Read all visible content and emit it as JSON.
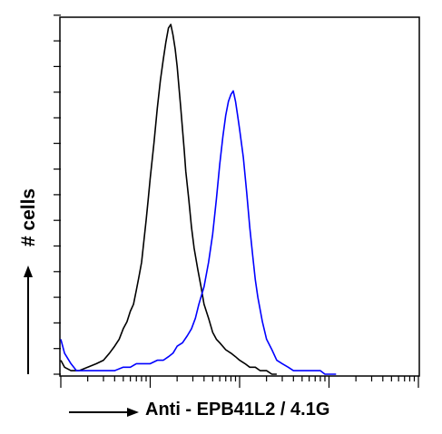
{
  "chart_data": {
    "type": "line",
    "title": "",
    "xlabel": "Anti - EPB41L2 / 4.1G",
    "ylabel": "# cells",
    "x_scale": "log",
    "xlim": [
      1,
      10000
    ],
    "ylim": [
      0,
      100
    ],
    "grid": false,
    "legend": "none",
    "series": [
      {
        "color": "#000000",
        "x": [
          1.0,
          1.1,
          1.3,
          1.6,
          2.0,
          2.5,
          3.0,
          3.5,
          4.0,
          4.5,
          5.0,
          5.5,
          6.0,
          6.5,
          7.0,
          7.5,
          8.0,
          8.5,
          9.0,
          9.5,
          10.0,
          11.0,
          12.0,
          13.0,
          14.0,
          15.0,
          16.0,
          17.0,
          18.0,
          19.0,
          20.0,
          21.0,
          22.0,
          23.0,
          24.0,
          25.0,
          27.0,
          29.0,
          31.0,
          34.0,
          37.0,
          40.0,
          45.0,
          50.0,
          55.0,
          60.0,
          70.0,
          80.0,
          90.0,
          100.0,
          115.0,
          130.0,
          150.0,
          170.0,
          200.0,
          230.0,
          260.0
        ],
        "y": [
          4,
          2,
          1,
          1,
          2,
          3,
          4,
          6,
          8,
          10,
          13,
          15,
          18,
          20,
          24,
          28,
          32,
          38,
          44,
          50,
          56,
          66,
          76,
          84,
          90,
          95,
          99,
          100,
          97,
          93,
          88,
          82,
          76,
          70,
          64,
          58,
          50,
          42,
          36,
          30,
          25,
          20,
          16,
          12,
          10,
          9,
          7,
          6,
          5,
          4,
          3,
          2,
          2,
          1,
          1,
          0,
          0
        ]
      },
      {
        "color": "#0000ff",
        "x": [
          1.0,
          1.1,
          1.3,
          1.5,
          2.0,
          3.0,
          4.0,
          5.0,
          6.0,
          7.0,
          8.0,
          10.0,
          12.0,
          14.0,
          16.0,
          18.0,
          20.0,
          23.0,
          26.0,
          29.0,
          32.0,
          35.0,
          40.0,
          45.0,
          50.0,
          55.0,
          60.0,
          65.0,
          70.0,
          75.0,
          80.0,
          85.0,
          90.0,
          95.0,
          100.0,
          110.0,
          120.0,
          130.0,
          140.0,
          150.0,
          160.0,
          180.0,
          200.0,
          230.0,
          260.0,
          300.0,
          350.0,
          400.0,
          450.0,
          500.0,
          600.0,
          700.0,
          800.0,
          900.0,
          1000.0,
          1200.0
        ],
        "y": [
          10,
          6,
          3,
          1,
          1,
          1,
          1,
          2,
          2,
          3,
          3,
          3,
          4,
          4,
          5,
          6,
          8,
          9,
          11,
          13,
          16,
          20,
          25,
          32,
          40,
          50,
          60,
          68,
          74,
          78,
          80,
          81,
          78,
          74,
          70,
          62,
          52,
          42,
          34,
          27,
          22,
          15,
          10,
          7,
          4,
          3,
          2,
          1,
          1,
          1,
          1,
          1,
          1,
          0,
          0,
          0
        ]
      }
    ]
  },
  "labels": {
    "ylabel": "# cells",
    "xlabel": "Anti - EPB41L2 / 4.1G"
  }
}
